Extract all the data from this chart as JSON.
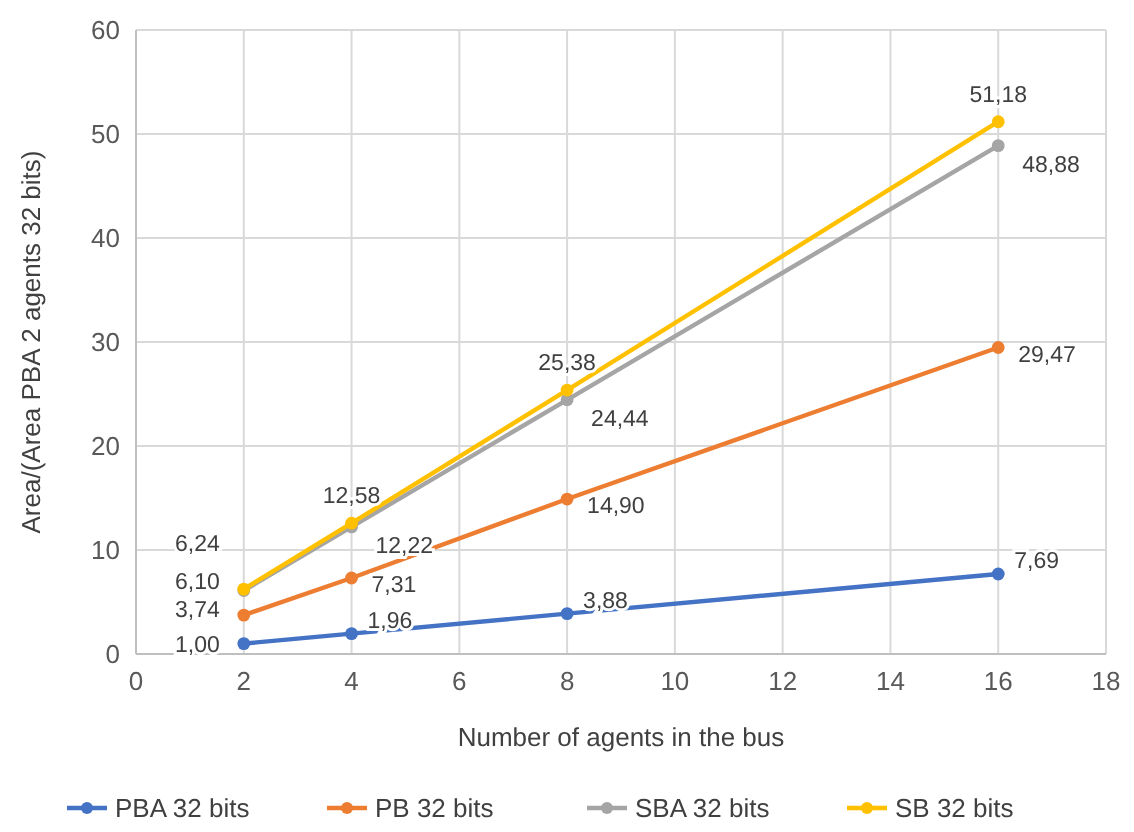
{
  "chart_data": {
    "type": "line",
    "xlabel": "Number of agents in the bus",
    "ylabel": "Area/(Area PBA 2 agents 32 bits)",
    "x": [
      2,
      4,
      8,
      16
    ],
    "xlim": [
      0,
      18
    ],
    "xticks": [
      0,
      2,
      4,
      6,
      8,
      10,
      12,
      14,
      16,
      18
    ],
    "ylim": [
      0,
      60
    ],
    "yticks": [
      0,
      10,
      20,
      30,
      40,
      50,
      60
    ],
    "grid": true,
    "legend": "bottom",
    "marker": "circle",
    "series": [
      {
        "name": "PBA 32 bits",
        "color": "#4472c4",
        "values": [
          1.0,
          1.96,
          3.88,
          7.69
        ],
        "value_labels": [
          "1,00",
          "1,96",
          "3,88",
          "7,69"
        ]
      },
      {
        "name": "PB 32 bits",
        "color": "#ed7d31",
        "values": [
          3.74,
          7.31,
          14.9,
          29.47
        ],
        "value_labels": [
          "3,74",
          "7,31",
          "14,90",
          "29,47"
        ]
      },
      {
        "name": "SBA 32 bits",
        "color": "#a5a5a5",
        "values": [
          6.1,
          12.22,
          24.44,
          48.88
        ],
        "value_labels": [
          "6,10",
          "12,22",
          "24,44",
          "48,88"
        ]
      },
      {
        "name": "SB 32 bits",
        "color": "#ffc000",
        "values": [
          6.24,
          12.58,
          25.38,
          51.18
        ],
        "value_labels": [
          "6,24",
          "12,58",
          "25,38",
          "51,18"
        ]
      }
    ]
  }
}
